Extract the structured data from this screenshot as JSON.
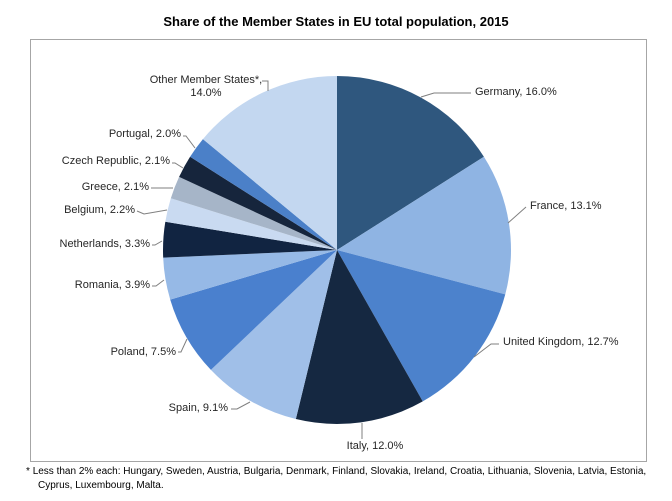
{
  "title": "Share of the Member States in EU total population, 2015",
  "footnote": {
    "marker": "*",
    "text": "Less than 2% each: Hungary, Sweden, Austria, Bulgaria, Denmark, Finland, Slovakia, Ireland, Croatia, Lithuania, Slovenia, Latvia, Estonia, Cyprus, Luxembourg, Malta."
  },
  "chart_data": {
    "type": "pie",
    "title": "Share of the Member States in EU total population, 2015",
    "unit": "%",
    "start_angle_deg": -90,
    "direction": "clockwise",
    "legend": "none",
    "data_labels": "outside-with-leader-lines",
    "slices": [
      {
        "name": "Germany",
        "value": 16.0,
        "color": "#2F577E"
      },
      {
        "name": "France",
        "value": 13.1,
        "color": "#8FB4E3"
      },
      {
        "name": "United Kingdom",
        "value": 12.7,
        "color": "#4C82CC"
      },
      {
        "name": "Italy",
        "value": 12.0,
        "color": "#152841"
      },
      {
        "name": "Spain",
        "value": 9.1,
        "color": "#A0BFE8"
      },
      {
        "name": "Poland",
        "value": 7.5,
        "color": "#4A80CE"
      },
      {
        "name": "Romania",
        "value": 3.9,
        "color": "#96B9E6"
      },
      {
        "name": "Netherlands",
        "value": 3.3,
        "color": "#112441"
      },
      {
        "name": "Belgium",
        "value": 2.2,
        "color": "#C9DAF1"
      },
      {
        "name": "Greece",
        "value": 2.1,
        "color": "#A6B5C8"
      },
      {
        "name": "Czech Republic",
        "value": 2.1,
        "color": "#16253C"
      },
      {
        "name": "Portugal",
        "value": 2.0,
        "color": "#4B80C8"
      },
      {
        "name": "Other Member States*",
        "value": 14.0,
        "color": "#C3D7F0"
      }
    ]
  }
}
